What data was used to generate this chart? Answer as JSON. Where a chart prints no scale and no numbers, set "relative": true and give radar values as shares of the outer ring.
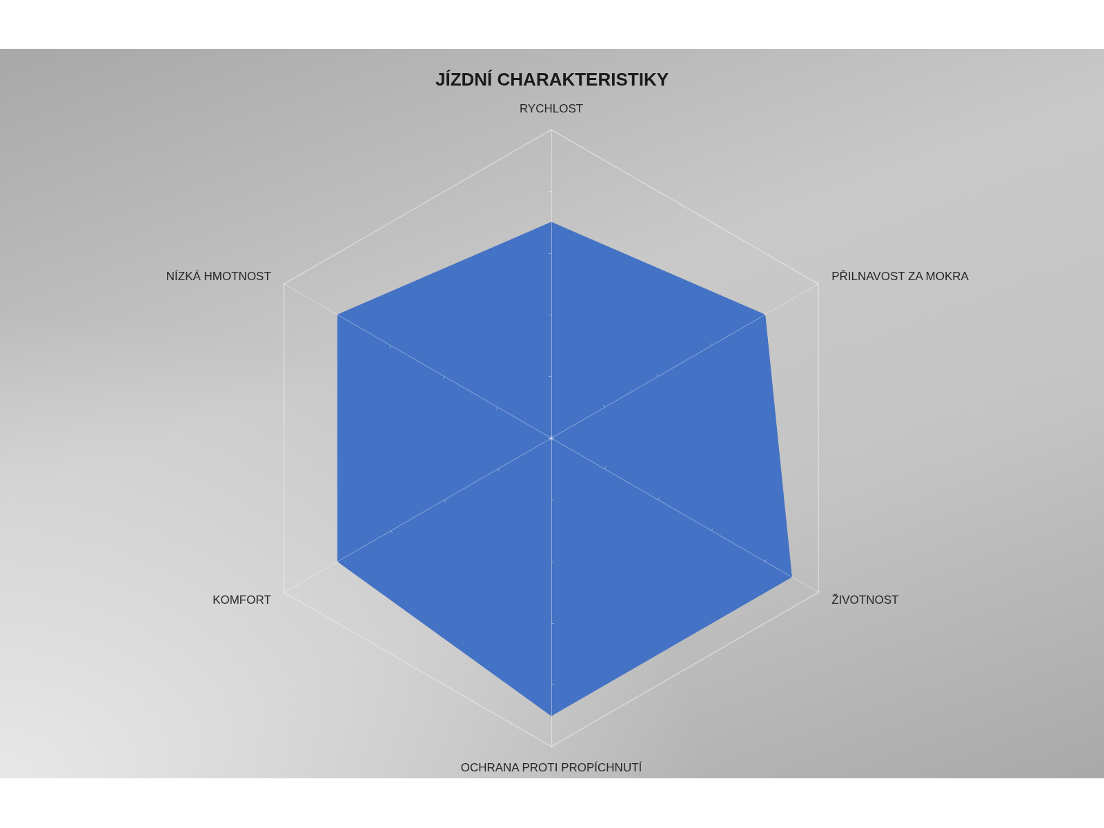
{
  "chart_data": {
    "type": "radar",
    "title": "JÍZDNÍ CHARAKTERISTIKY",
    "categories": [
      "RYCHLOST",
      "PŘILNAVOST ZA MOKRA",
      "ŽIVOTNOST",
      "OCHRANA PROTI PROPÍCHNUTÍ",
      "KOMFORT",
      "NÍZKÁ HMOTNOST"
    ],
    "series": [
      {
        "color": "#4472c4",
        "values": [
          0.7,
          0.8,
          0.9,
          0.9,
          0.8,
          0.8
        ]
      }
    ],
    "relative": true,
    "grid": true,
    "marker": "none"
  }
}
